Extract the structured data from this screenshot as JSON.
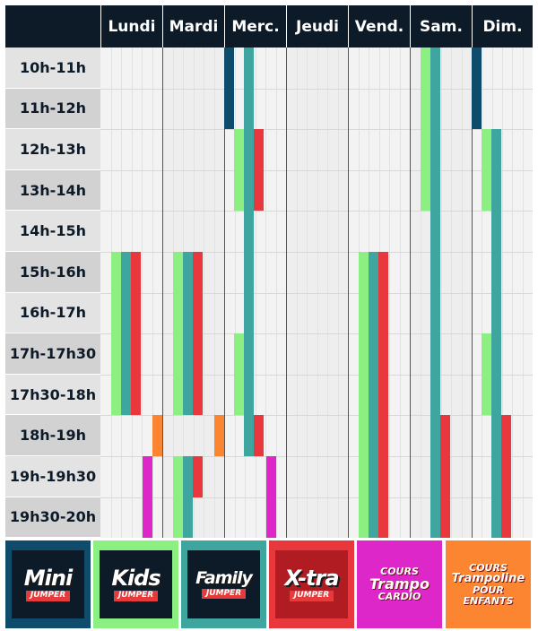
{
  "days": [
    "Lundi",
    "Mardi",
    "Merc.",
    "Jeudi",
    "Vend.",
    "Sam.",
    "Dim."
  ],
  "time_slots": [
    "10h-11h",
    "11h-12h",
    "12h-13h",
    "13h-14h",
    "14h-15h",
    "15h-16h",
    "16h-17h",
    "17h-17h30",
    "17h30-18h",
    "18h-19h",
    "19h-19h30",
    "19h30-20h"
  ],
  "courses": [
    {
      "id": "mini",
      "color": "#0f4c6b"
    },
    {
      "id": "kids",
      "color": "#8bef82"
    },
    {
      "id": "family",
      "color": "#3fa69f"
    },
    {
      "id": "xtra",
      "color": "#e8383d"
    },
    {
      "id": "trampo",
      "color": "#dd27c8"
    },
    {
      "id": "enfants",
      "color": "#fb8530"
    }
  ],
  "sessions": [
    {
      "course": "kids",
      "day": 0,
      "start": 5,
      "end": 9
    },
    {
      "course": "family",
      "day": 0,
      "start": 5,
      "end": 9
    },
    {
      "course": "xtra",
      "day": 0,
      "start": 5,
      "end": 9
    },
    {
      "course": "enfants",
      "day": 0,
      "start": 9,
      "end": 10
    },
    {
      "course": "trampo",
      "day": 0,
      "start": 10,
      "end": 12
    },
    {
      "course": "kids",
      "day": 1,
      "start": 5,
      "end": 9
    },
    {
      "course": "family",
      "day": 1,
      "start": 5,
      "end": 9
    },
    {
      "course": "xtra",
      "day": 1,
      "start": 5,
      "end": 9
    },
    {
      "course": "enfants",
      "day": 1,
      "start": 9,
      "end": 10
    },
    {
      "course": "kids",
      "day": 1,
      "start": 10,
      "end": 12
    },
    {
      "course": "family",
      "day": 1,
      "start": 10,
      "end": 12
    },
    {
      "course": "xtra",
      "day": 1,
      "start": 10,
      "end": 11
    },
    {
      "course": "mini",
      "day": 2,
      "start": 0,
      "end": 2
    },
    {
      "course": "family",
      "day": 2,
      "start": 0,
      "end": 2
    },
    {
      "course": "kids",
      "day": 2,
      "start": 2,
      "end": 4
    },
    {
      "course": "family",
      "day": 2,
      "start": 2,
      "end": 4
    },
    {
      "course": "xtra",
      "day": 2,
      "start": 2,
      "end": 4
    },
    {
      "course": "family",
      "day": 2,
      "start": 4,
      "end": 7
    },
    {
      "course": "kids",
      "day": 2,
      "start": 7,
      "end": 9
    },
    {
      "course": "family",
      "day": 2,
      "start": 7,
      "end": 9
    },
    {
      "course": "family",
      "day": 2,
      "start": 9,
      "end": 10
    },
    {
      "course": "xtra",
      "day": 2,
      "start": 9,
      "end": 10
    },
    {
      "course": "trampo",
      "day": 2,
      "start": 10,
      "end": 12
    },
    {
      "course": "kids",
      "day": 4,
      "start": 5,
      "end": 12
    },
    {
      "course": "family",
      "day": 4,
      "start": 5,
      "end": 12
    },
    {
      "course": "xtra",
      "day": 4,
      "start": 5,
      "end": 12
    },
    {
      "course": "kids",
      "day": 5,
      "start": 0,
      "end": 4
    },
    {
      "course": "family",
      "day": 5,
      "start": 0,
      "end": 12
    },
    {
      "course": "xtra",
      "day": 5,
      "start": 9,
      "end": 12
    },
    {
      "course": "mini",
      "day": 6,
      "start": 0,
      "end": 2
    },
    {
      "course": "kids",
      "day": 6,
      "start": 2,
      "end": 4
    },
    {
      "course": "family",
      "day": 6,
      "start": 2,
      "end": 12
    },
    {
      "course": "kids",
      "day": 6,
      "start": 7,
      "end": 9
    },
    {
      "course": "xtra",
      "day": 6,
      "start": 9,
      "end": 12
    }
  ],
  "legend": [
    {
      "id": "mini",
      "main": "Mini",
      "sub": "JUMPER",
      "bg": "#0f4c6b",
      "border": "#0f4c6b",
      "inner": "#0d1a28"
    },
    {
      "id": "kids",
      "main": "Kids",
      "sub": "JUMPER",
      "bg": "#8bef82",
      "border": "#8bef82",
      "inner": "#0d1a28"
    },
    {
      "id": "family",
      "main": "Family",
      "sub": "JUMPER",
      "bg": "#3fa69f",
      "border": "#3fa69f",
      "inner": "#0d1a28"
    },
    {
      "id": "xtra",
      "main": "X-tra",
      "sub": "JUMPER",
      "bg": "#e8383d",
      "border": "#e8383d",
      "inner": "#b01c22"
    },
    {
      "id": "trampo",
      "lines": [
        "COURS",
        "Trampo",
        "CARDIO"
      ],
      "bg": "#dd27c8",
      "border": "#dd27c8",
      "inner": "#dd27c8"
    },
    {
      "id": "enfants",
      "lines": [
        "COURS",
        "Trampoline",
        "POUR ENFANTS"
      ],
      "bg": "#fb8530",
      "border": "#fb8530",
      "inner": "#fb8530"
    }
  ]
}
